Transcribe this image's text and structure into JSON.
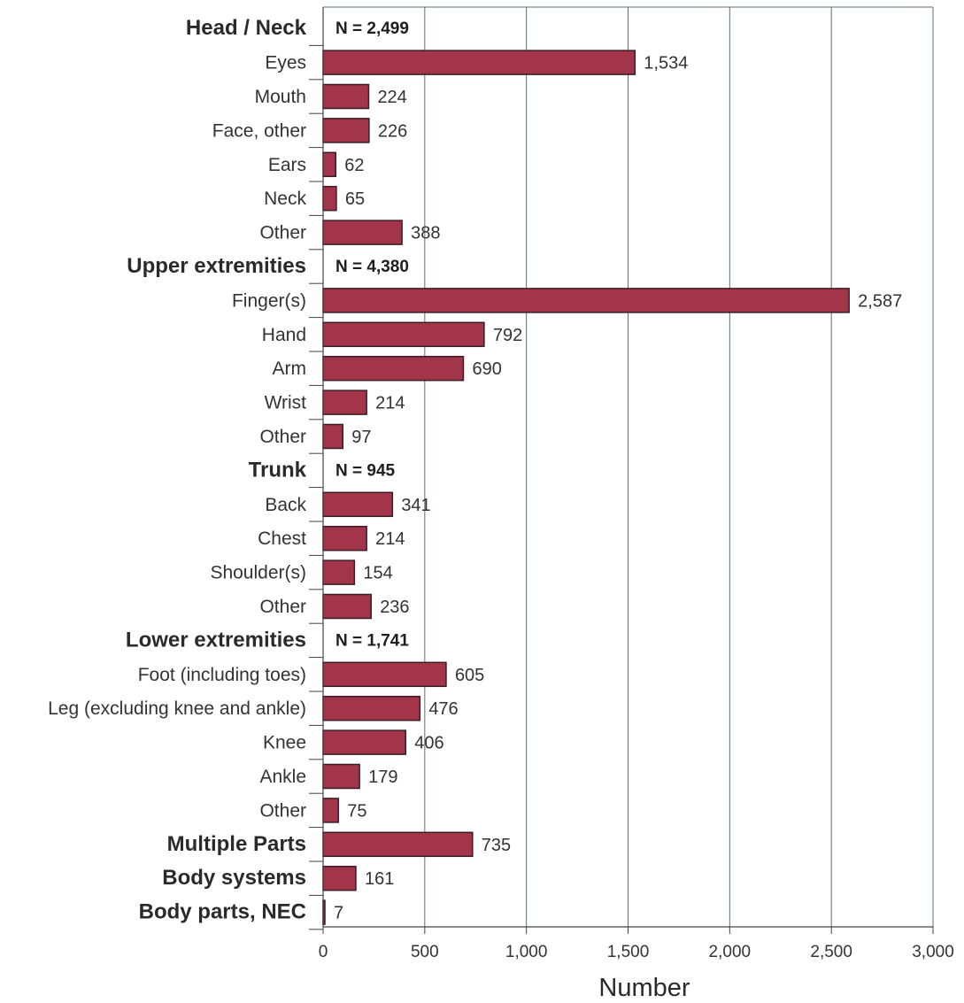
{
  "chart_data": {
    "type": "bar",
    "orientation": "horizontal",
    "xlabel": "Number",
    "xlim": [
      0,
      3000
    ],
    "ticks": [
      0,
      500,
      1000,
      1500,
      2000,
      2500,
      3000
    ],
    "tick_labels": [
      "0",
      "500",
      "1,000",
      "1,500",
      "2,000",
      "2,500",
      "3,000"
    ],
    "grid": true,
    "bar_color": "#a3354a",
    "rows": [
      {
        "label": "Head / Neck",
        "bold": true,
        "n_label": "N = 2,499"
      },
      {
        "label": "Eyes",
        "value": 1534,
        "value_label": "1,534"
      },
      {
        "label": "Mouth",
        "value": 224,
        "value_label": "224"
      },
      {
        "label": "Face, other",
        "value": 226,
        "value_label": "226"
      },
      {
        "label": "Ears",
        "value": 62,
        "value_label": "62"
      },
      {
        "label": "Neck",
        "value": 65,
        "value_label": "65"
      },
      {
        "label": "Other",
        "value": 388,
        "value_label": "388"
      },
      {
        "label": "Upper extremities",
        "bold": true,
        "n_label": "N = 4,380"
      },
      {
        "label": "Finger(s)",
        "value": 2587,
        "value_label": "2,587"
      },
      {
        "label": "Hand",
        "value": 792,
        "value_label": "792"
      },
      {
        "label": "Arm",
        "value": 690,
        "value_label": "690"
      },
      {
        "label": "Wrist",
        "value": 214,
        "value_label": "214"
      },
      {
        "label": "Other",
        "value": 97,
        "value_label": "97"
      },
      {
        "label": "Trunk",
        "bold": true,
        "n_label": "N = 945"
      },
      {
        "label": "Back",
        "value": 341,
        "value_label": "341"
      },
      {
        "label": "Chest",
        "value": 214,
        "value_label": "214"
      },
      {
        "label": "Shoulder(s)",
        "value": 154,
        "value_label": "154"
      },
      {
        "label": "Other",
        "value": 236,
        "value_label": "236"
      },
      {
        "label": "Lower extremities",
        "bold": true,
        "n_label": "N = 1,741"
      },
      {
        "label": "Foot (including toes)",
        "value": 605,
        "value_label": "605"
      },
      {
        "label": "Leg (excluding knee and ankle)",
        "value": 476,
        "value_label": "476"
      },
      {
        "label": "Knee",
        "value": 406,
        "value_label": "406"
      },
      {
        "label": "Ankle",
        "value": 179,
        "value_label": "179"
      },
      {
        "label": "Other",
        "value": 75,
        "value_label": "75"
      },
      {
        "label": "Multiple Parts",
        "bold": true,
        "value": 735,
        "value_label": "735"
      },
      {
        "label": "Body systems",
        "bold": true,
        "value": 161,
        "value_label": "161"
      },
      {
        "label": "Body parts, NEC",
        "bold": true,
        "value": 7,
        "value_label": "7"
      }
    ]
  }
}
